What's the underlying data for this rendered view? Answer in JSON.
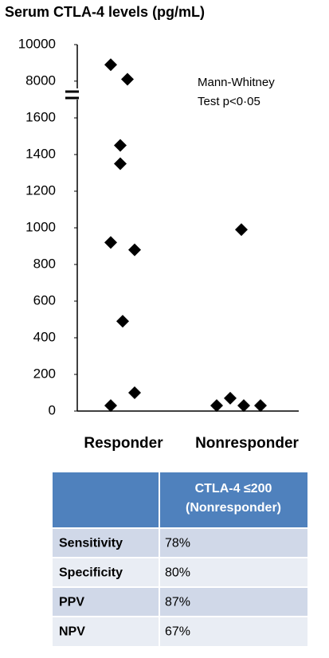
{
  "chart_data": {
    "type": "scatter",
    "title": "Serum CTLA-4 levels (pg/mL)",
    "categories": [
      "Responder",
      "Nonresponder"
    ],
    "values": [
      [
        8900,
        8100,
        1450,
        1350,
        920,
        880,
        490,
        100,
        30
      ],
      [
        990,
        30,
        70,
        30,
        30
      ]
    ],
    "color": "#000000",
    "y_segments": [
      {
        "ylim": [
          0,
          1700
        ],
        "yticks": [
          0,
          200,
          400,
          600,
          800,
          1000,
          1200,
          1400,
          1600
        ]
      },
      {
        "ylim": [
          7600,
          10000
        ],
        "yticks": [
          8000,
          10000
        ]
      }
    ],
    "annotation": [
      "Mann-Whitney",
      "Test p<0·05"
    ]
  },
  "table": {
    "header": [
      "CTLA-4 ≤200",
      "(Nonresponder)"
    ],
    "rows": [
      [
        "Sensitivity",
        "78%"
      ],
      [
        "Specificity",
        "80%"
      ],
      [
        "PPV",
        "87%"
      ],
      [
        "NPV",
        "67%"
      ]
    ]
  }
}
